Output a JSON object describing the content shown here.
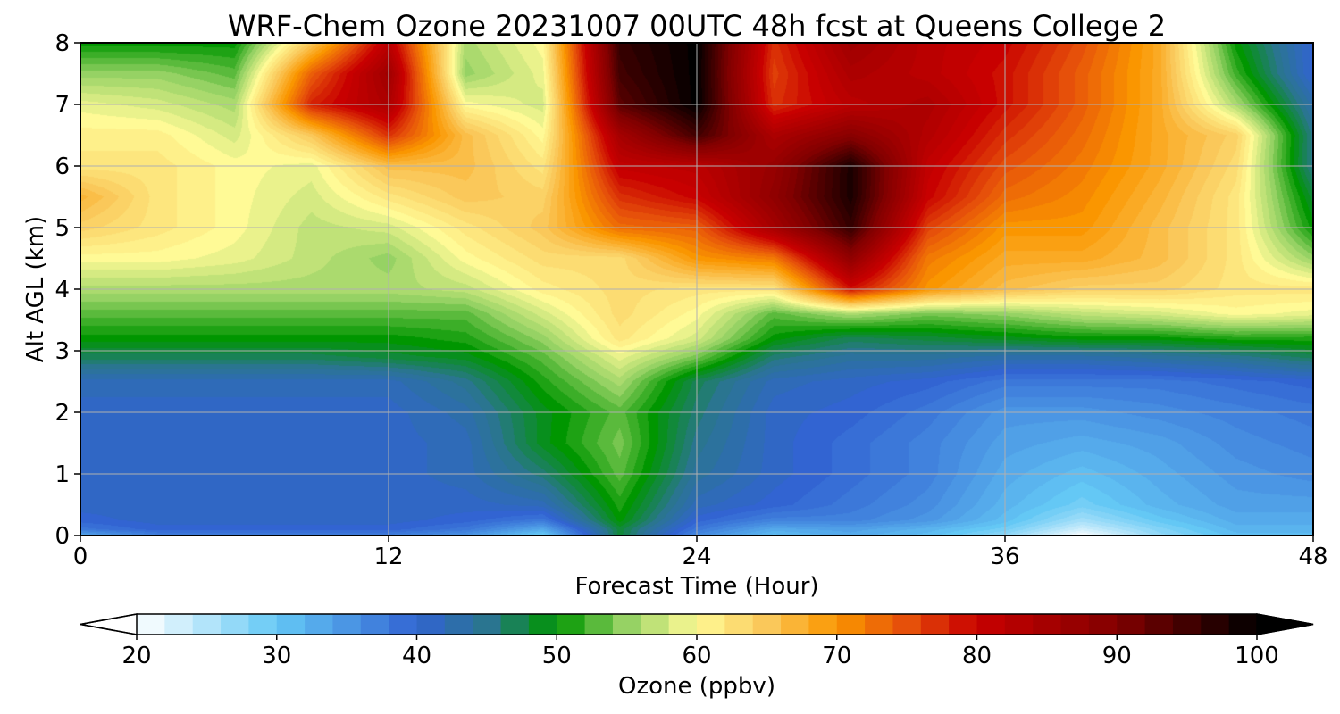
{
  "chart_data": {
    "type": "heatmap",
    "title": "WRF-Chem Ozone  20231007 00UTC 48h fcst at Queens College 2",
    "xlabel": "Forecast Time (Hour)",
    "ylabel": "Alt AGL (km)",
    "xlim": [
      0,
      48
    ],
    "ylim": [
      0,
      8
    ],
    "x_ticks": [
      0,
      12,
      24,
      36,
      48
    ],
    "y_ticks": [
      0,
      1,
      2,
      3,
      4,
      5,
      6,
      7,
      8
    ],
    "grid": true,
    "x_hours": [
      0,
      3,
      6,
      9,
      12,
      15,
      18,
      21,
      24,
      27,
      30,
      33,
      36,
      39,
      42,
      45,
      48
    ],
    "z_km": [
      0.0,
      0.1,
      0.25,
      0.5,
      1.0,
      1.5,
      2.0,
      2.5,
      2.9,
      3.2,
      3.6,
      4.0,
      4.5,
      5.0,
      5.5,
      6.0,
      6.5,
      7.0,
      7.5,
      8.0
    ],
    "values_ppbv": [
      [
        33,
        37,
        37,
        37,
        37,
        35,
        29,
        48,
        36,
        31,
        33,
        31,
        27,
        20,
        27,
        31,
        31
      ],
      [
        38,
        40,
        40,
        40,
        40,
        38,
        33,
        48,
        38,
        33,
        34,
        32,
        29,
        23,
        28,
        32,
        32
      ],
      [
        40,
        41,
        41,
        41,
        41,
        40,
        38,
        50,
        40,
        37,
        37,
        35,
        31,
        26,
        30,
        33,
        33
      ],
      [
        41,
        41,
        41,
        41,
        41,
        41,
        42,
        51,
        42,
        40,
        38,
        36,
        32,
        29,
        32,
        34,
        34
      ],
      [
        41,
        41,
        41,
        41,
        41,
        42,
        46,
        53,
        44,
        41,
        39,
        37,
        33,
        31,
        33,
        35,
        36
      ],
      [
        41,
        41,
        41,
        41,
        41,
        42,
        49,
        54,
        45,
        41,
        39,
        37,
        34,
        33,
        34,
        36,
        37
      ],
      [
        41,
        41,
        41,
        41,
        41,
        43,
        49,
        53,
        46,
        41,
        40,
        38,
        35,
        35,
        36,
        37,
        38
      ],
      [
        42,
        42,
        42,
        42,
        42,
        45,
        51,
        56,
        47,
        42,
        41,
        40,
        38,
        38,
        38,
        39,
        40
      ],
      [
        47,
        47,
        47,
        47,
        48,
        49,
        53,
        59,
        54,
        46,
        44,
        44,
        43,
        43,
        44,
        45,
        47
      ],
      [
        50,
        50,
        50,
        50,
        50,
        51,
        55,
        62,
        58,
        50,
        47,
        48,
        49,
        50,
        50,
        51,
        51
      ],
      [
        53,
        53,
        53,
        53,
        53,
        53,
        58,
        63,
        60,
        53,
        56,
        54,
        55,
        57,
        58,
        60,
        59
      ],
      [
        56,
        56,
        56,
        56,
        56,
        57,
        61,
        63,
        62,
        62,
        79,
        70,
        66,
        64,
        64,
        62,
        62
      ],
      [
        60,
        60,
        59,
        57,
        55,
        60,
        63,
        63,
        70,
        72,
        88,
        72,
        68,
        68,
        66,
        62,
        55
      ],
      [
        64,
        62,
        60,
        57,
        58,
        62,
        65,
        73,
        74,
        85,
        96,
        76,
        70,
        70,
        66,
        62,
        50
      ],
      [
        67,
        62,
        60,
        58,
        62,
        65,
        64,
        77,
        80,
        88,
        98,
        80,
        73,
        71,
        67,
        62,
        48
      ],
      [
        62,
        62,
        60,
        59,
        66,
        66,
        62,
        81,
        82,
        87,
        98,
        81,
        75,
        72,
        68,
        63,
        45
      ],
      [
        61,
        61,
        58,
        65,
        77,
        66,
        60,
        85,
        95,
        84,
        89,
        83,
        77,
        73,
        68,
        64,
        45
      ],
      [
        59,
        58,
        56,
        78,
        84,
        60,
        58,
        93,
        100,
        77,
        82,
        84,
        79,
        74,
        68,
        56,
        43
      ],
      [
        55,
        55,
        53,
        74,
        86,
        55,
        59,
        95,
        100,
        76,
        84,
        82,
        79,
        74,
        68,
        52,
        40
      ],
      [
        50,
        50,
        50,
        65,
        82,
        56,
        60,
        96,
        100,
        77,
        86,
        82,
        80,
        75,
        68,
        50,
        40
      ]
    ]
  },
  "colorbar": {
    "label": "Ozone  (ppbv)",
    "min": 20,
    "max": 100,
    "ticks": [
      20,
      30,
      40,
      50,
      60,
      70,
      80,
      90,
      100
    ],
    "stops": [
      {
        "v": 20,
        "color": "#ffffff"
      },
      {
        "v": 30,
        "color": "#64c8f5"
      },
      {
        "v": 40,
        "color": "#3264d2"
      },
      {
        "v": 45,
        "color": "#2a7590"
      },
      {
        "v": 50,
        "color": "#009600"
      },
      {
        "v": 55,
        "color": "#96d264"
      },
      {
        "v": 60,
        "color": "#fffa96"
      },
      {
        "v": 65,
        "color": "#fac85a"
      },
      {
        "v": 70,
        "color": "#fa9600"
      },
      {
        "v": 75,
        "color": "#e6500a"
      },
      {
        "v": 80,
        "color": "#c80000"
      },
      {
        "v": 90,
        "color": "#820000"
      },
      {
        "v": 100,
        "color": "#000000"
      }
    ],
    "extend": "both"
  }
}
